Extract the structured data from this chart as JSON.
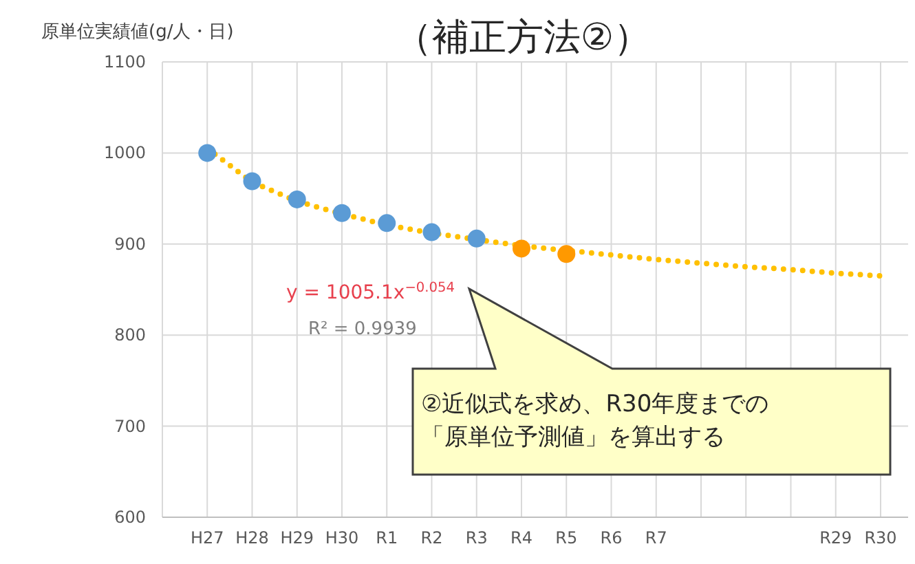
{
  "chart_data": {
    "type": "scatter",
    "title": "（補正方法②）",
    "ylabel": "原単位実績値(g/人・日)",
    "categories": [
      "H27",
      "H28",
      "H29",
      "H30",
      "R1",
      "R2",
      "R3",
      "R4",
      "R5",
      "R6",
      "R7",
      null,
      null,
      null,
      "R29",
      "R30"
    ],
    "series": [
      {
        "type": "line",
        "color": "#ffc000",
        "line_style": "dotted",
        "marker": "none",
        "values": [
          1005,
          968,
          947,
          933,
          921,
          912,
          905,
          898,
          893,
          888,
          883,
          879,
          875,
          872,
          868,
          865
        ]
      },
      {
        "color": "#5b9bd5",
        "values": [
          1000,
          969,
          949,
          934,
          923,
          913,
          906,
          null,
          null,
          null,
          null,
          null,
          null,
          null,
          null,
          null
        ]
      },
      {
        "color": "#ff9900",
        "values": [
          null,
          null,
          null,
          null,
          null,
          null,
          null,
          895,
          889,
          null,
          null,
          null,
          null,
          null,
          null,
          null
        ]
      }
    ],
    "ylim": [
      600,
      1100
    ],
    "yticks": [
      600,
      700,
      800,
      900,
      1000,
      1100
    ],
    "grid": true,
    "marker": "circle",
    "annotations": [
      "y = 1005.1x$^{−0.054}$",
      "R² = 0.9939",
      "②近似式を求め、R30年度までの「原単位予測値」を算出する"
    ]
  }
}
